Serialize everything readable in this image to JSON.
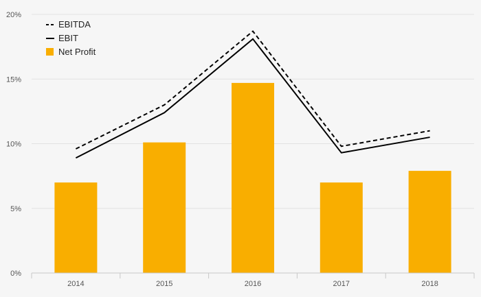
{
  "chart_data": {
    "type": "bar",
    "categories": [
      "2014",
      "2015",
      "2016",
      "2017",
      "2018"
    ],
    "series": [
      {
        "name": "Net Profit",
        "kind": "bar",
        "color": "#f9ae00",
        "values": [
          7.0,
          10.1,
          14.7,
          7.0,
          7.9
        ]
      },
      {
        "name": "EBIT",
        "kind": "line",
        "style": "solid",
        "color": "#000000",
        "values": [
          8.9,
          12.4,
          18.1,
          9.3,
          10.5
        ]
      },
      {
        "name": "EBITDA",
        "kind": "line",
        "style": "dashed",
        "color": "#000000",
        "values": [
          9.6,
          13.0,
          18.7,
          9.8,
          11.0
        ]
      }
    ],
    "y_ticks": [
      "0%",
      "5%",
      "10%",
      "15%",
      "20%"
    ],
    "ylim": [
      0,
      20
    ],
    "y_unit": "%",
    "grid": true,
    "legend_position": "top-left",
    "title": "",
    "xlabel": "",
    "ylabel": ""
  },
  "legend": [
    {
      "label": "EBITDA",
      "symbol": "dashed-line"
    },
    {
      "label": "EBIT",
      "symbol": "solid-line"
    },
    {
      "label": "Net Profit",
      "symbol": "square"
    }
  ]
}
